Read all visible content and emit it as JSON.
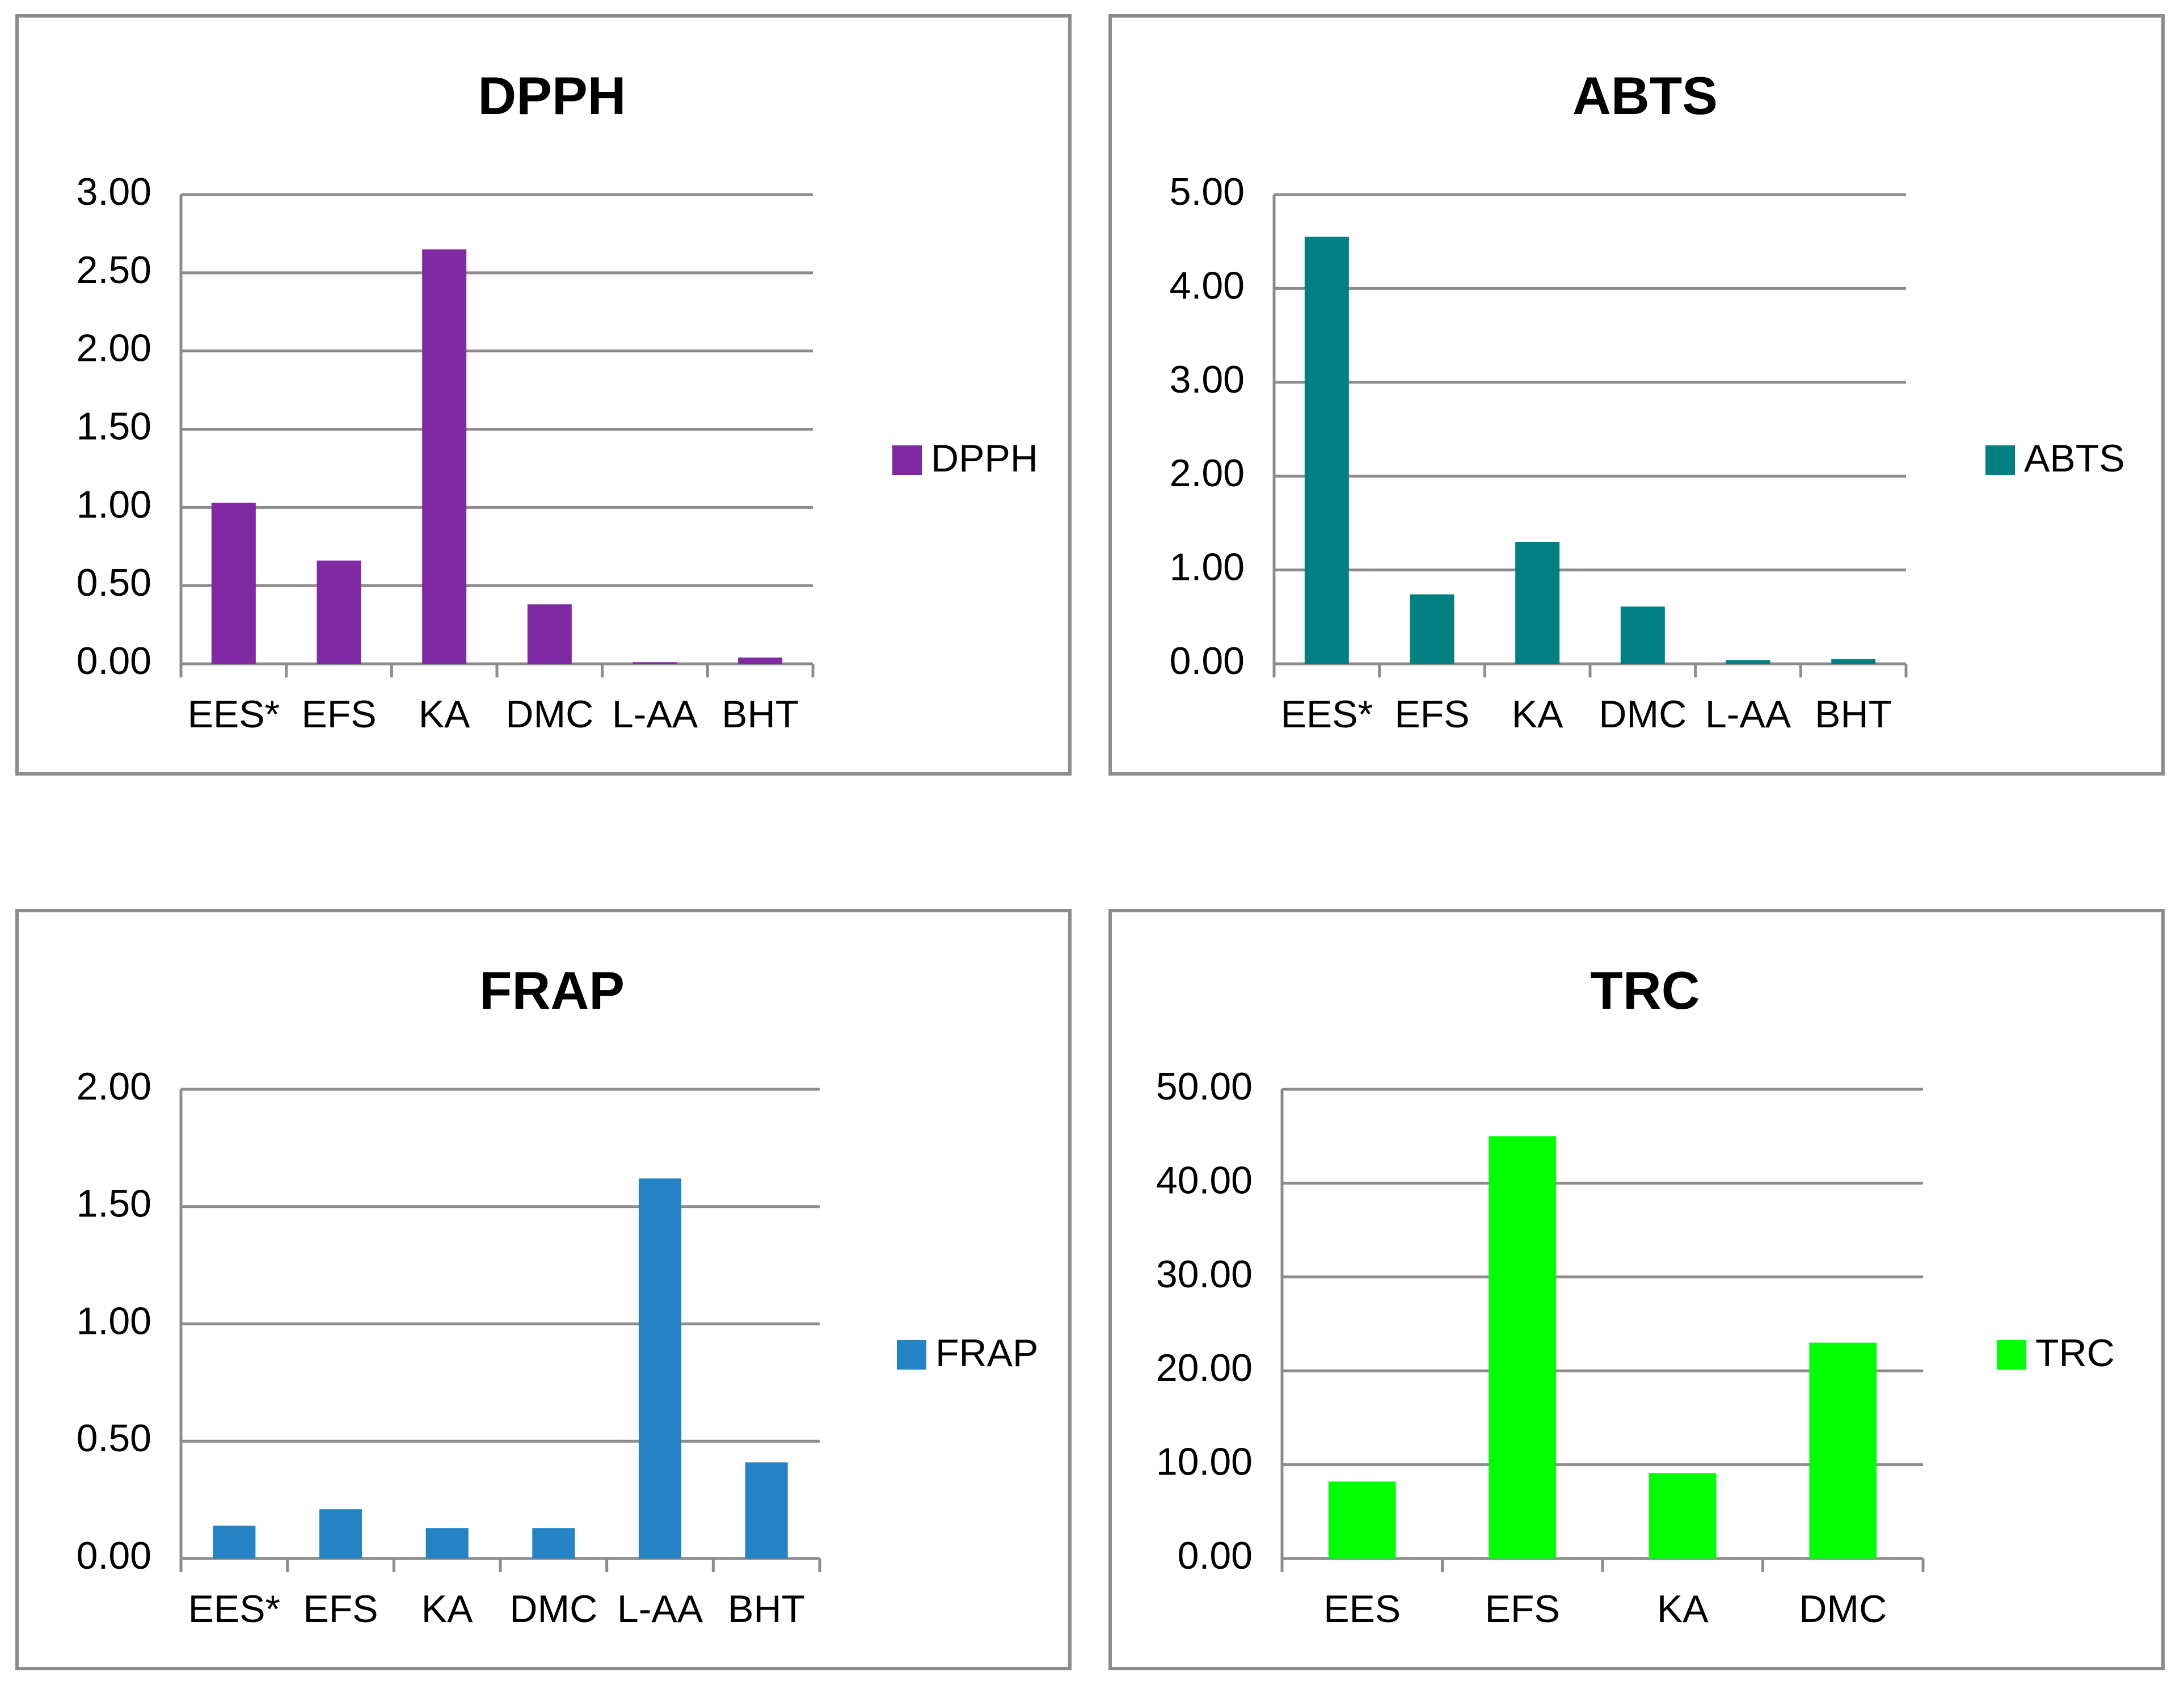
{
  "chart_data": [
    {
      "type": "bar",
      "title": "DPPH",
      "categories": [
        "EES*",
        "EFS",
        "KA",
        "DMC",
        "L-AA",
        "BHT"
      ],
      "series": [
        {
          "name": "DPPH",
          "values": [
            1.03,
            0.66,
            2.65,
            0.38,
            0.01,
            0.04
          ]
        }
      ],
      "yticks": [
        "0.00",
        "0.50",
        "1.00",
        "1.50",
        "2.00",
        "2.50",
        "3.00"
      ],
      "ylim": [
        0,
        3
      ],
      "color": "#7f2aa3",
      "xlabel": "",
      "ylabel": "",
      "grid": true,
      "legend_position": "right"
    },
    {
      "type": "bar",
      "title": "ABTS",
      "categories": [
        "EES*",
        "EFS",
        "KA",
        "DMC",
        "L-AA",
        "BHT"
      ],
      "series": [
        {
          "name": "ABTS",
          "values": [
            4.55,
            0.74,
            1.3,
            0.61,
            0.04,
            0.05
          ]
        }
      ],
      "yticks": [
        "0.00",
        "1.00",
        "2.00",
        "3.00",
        "4.00",
        "5.00"
      ],
      "ylim": [
        0,
        5
      ],
      "color": "#008080",
      "xlabel": "",
      "ylabel": "",
      "grid": true,
      "legend_position": "right"
    },
    {
      "type": "bar",
      "title": "FRAP",
      "categories": [
        "EES*",
        "EFS",
        "KA",
        "DMC",
        "L-AA",
        "BHT"
      ],
      "series": [
        {
          "name": "FRAP",
          "values": [
            0.14,
            0.21,
            0.13,
            0.13,
            1.62,
            0.41
          ]
        }
      ],
      "yticks": [
        "0.00",
        "0.50",
        "1.00",
        "1.50",
        "2.00"
      ],
      "ylim": [
        0,
        2
      ],
      "color": "#2483c5",
      "xlabel": "",
      "ylabel": "",
      "grid": true,
      "legend_position": "right"
    },
    {
      "type": "bar",
      "title": "TRC",
      "categories": [
        "EES",
        "EFS",
        "KA",
        "DMC"
      ],
      "series": [
        {
          "name": "TRC",
          "values": [
            8.2,
            45.0,
            9.1,
            23.0
          ]
        }
      ],
      "yticks": [
        "0.00",
        "10.00",
        "20.00",
        "30.00",
        "40.00",
        "50.00"
      ],
      "ylim": [
        0,
        50
      ],
      "color": "#00ff00",
      "xlabel": "",
      "ylabel": "",
      "grid": true,
      "legend_position": "right"
    }
  ]
}
